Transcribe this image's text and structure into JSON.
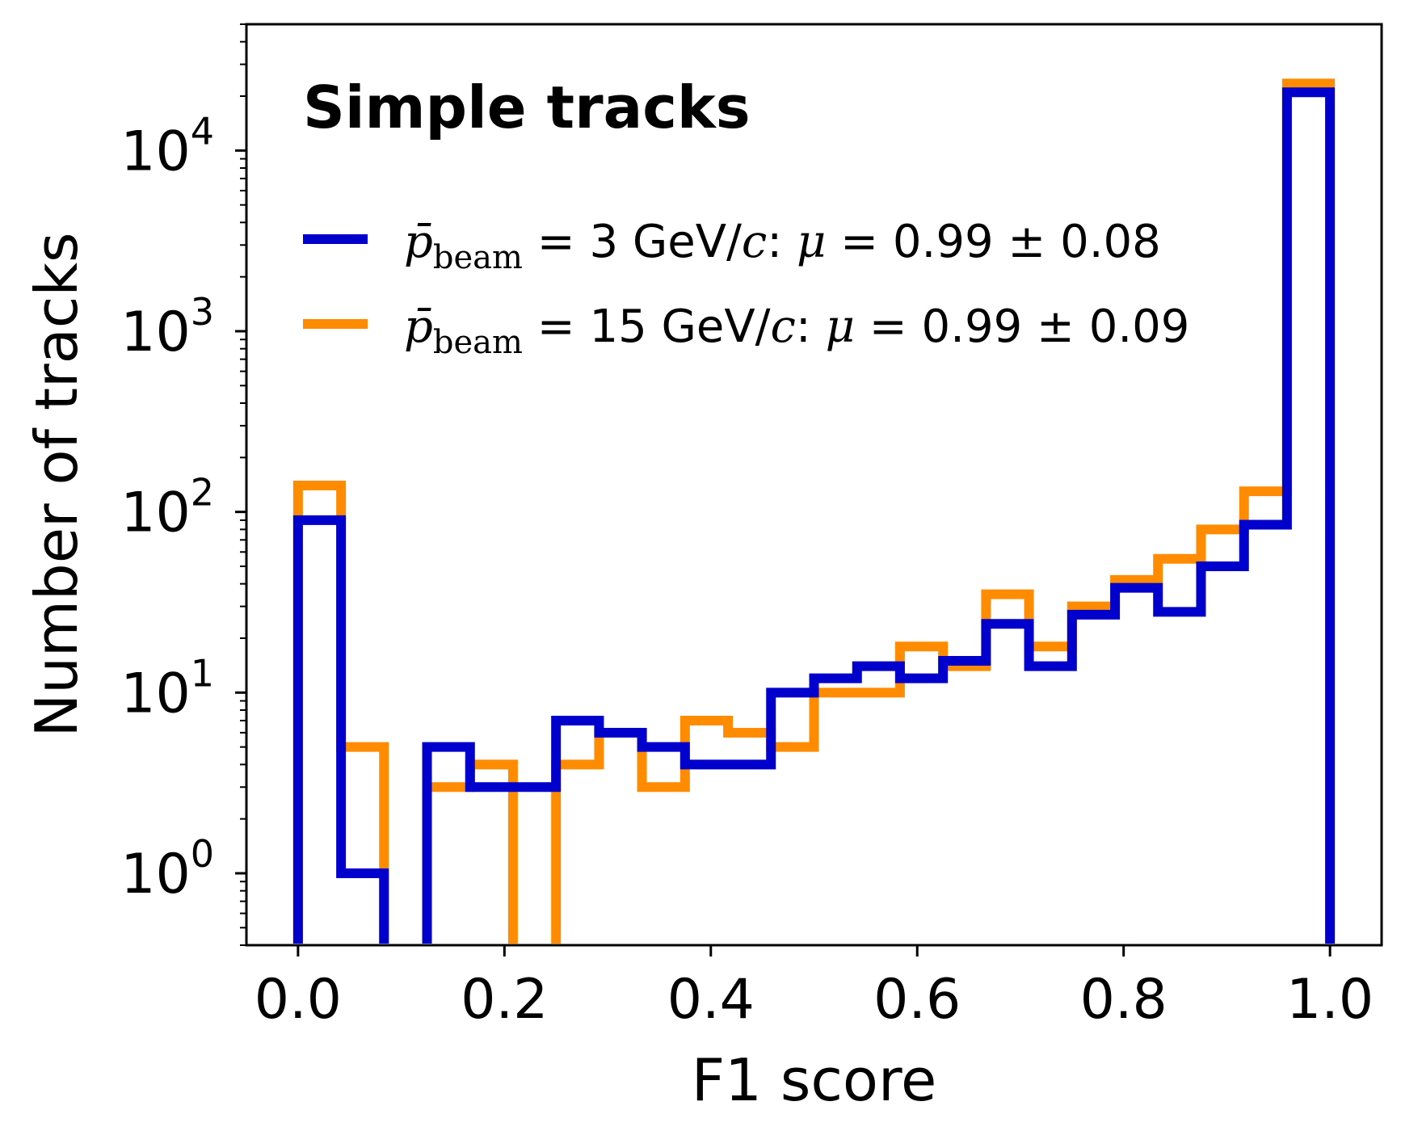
{
  "chart_data": {
    "type": "histogram",
    "title": "Simple tracks",
    "xlabel": "F1 score",
    "ylabel": "Number of tracks",
    "yscale": "log",
    "xlim": [
      -0.05,
      1.05
    ],
    "ylim": [
      0.4,
      50000
    ],
    "grid": false,
    "legend_position": "top",
    "bin_edges": [
      0.0,
      0.0417,
      0.0833,
      0.125,
      0.1667,
      0.2083,
      0.25,
      0.2917,
      0.3333,
      0.375,
      0.4167,
      0.4583,
      0.5,
      0.5417,
      0.5833,
      0.625,
      0.6667,
      0.7083,
      0.75,
      0.7917,
      0.8333,
      0.875,
      0.9167,
      0.9583,
      1.0
    ],
    "x_ticks": [
      {
        "value": 0.0,
        "label": "0.0"
      },
      {
        "value": 0.2,
        "label": "0.2"
      },
      {
        "value": 0.4,
        "label": "0.4"
      },
      {
        "value": 0.6,
        "label": "0.6"
      },
      {
        "value": 0.8,
        "label": "0.8"
      },
      {
        "value": 1.0,
        "label": "1.0"
      }
    ],
    "y_ticks": [
      {
        "value": 1,
        "base": "10",
        "exp": "0"
      },
      {
        "value": 10,
        "base": "10",
        "exp": "1"
      },
      {
        "value": 100,
        "base": "10",
        "exp": "2"
      },
      {
        "value": 1000,
        "base": "10",
        "exp": "3"
      },
      {
        "value": 10000,
        "base": "10",
        "exp": "4"
      }
    ],
    "series": [
      {
        "name": "p̄beam = 3 GeV/c:   μ = 0.99 ± 0.08",
        "legend": {
          "sym": "p̄",
          "sub": "beam",
          "eq": " = 3 GeV/",
          "c": "c",
          "colon": ":   ",
          "mu": "μ",
          "stat": " = 0.99 ± 0.08"
        },
        "color": "#0000cc",
        "counts": [
          90,
          1,
          0,
          5,
          3,
          3,
          7,
          6,
          5,
          4,
          4,
          10,
          12,
          14,
          12,
          15,
          24,
          14,
          27,
          38,
          28,
          50,
          85,
          21000
        ]
      },
      {
        "name": "p̄beam = 15 GeV/c: μ = 0.99 ± 0.09",
        "legend": {
          "sym": "p̄",
          "sub": "beam",
          "eq": " = 15 GeV/",
          "c": "c",
          "colon": ": ",
          "mu": "μ",
          "stat": " = 0.99 ± 0.09"
        },
        "color": "#ff8c00",
        "counts": [
          140,
          5,
          0,
          3,
          4,
          0,
          4,
          6,
          3,
          7,
          6,
          5,
          10,
          10,
          18,
          14,
          35,
          18,
          30,
          42,
          55,
          80,
          130,
          23500
        ]
      }
    ]
  }
}
